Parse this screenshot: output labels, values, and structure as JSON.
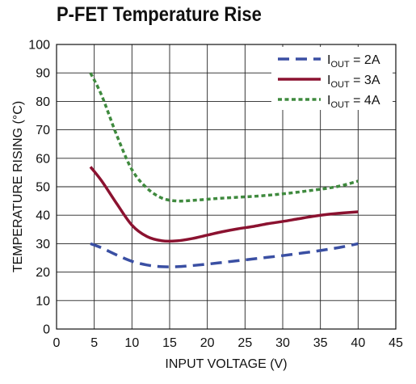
{
  "chart_data": {
    "type": "line",
    "title": "P-FET Temperature Rise",
    "xlabel": "INPUT VOLTAGE (V)",
    "ylabel": "TEMPERATURE RISING (°C)",
    "xlim": [
      0,
      45
    ],
    "ylim": [
      0,
      100
    ],
    "xticks": [
      "0",
      "5",
      "10",
      "15",
      "20",
      "25",
      "30",
      "35",
      "40",
      "45"
    ],
    "yticks": [
      "0",
      "10",
      "20",
      "30",
      "40",
      "50",
      "60",
      "70",
      "80",
      "90",
      "100"
    ],
    "grid": true,
    "legend_position": "top-right",
    "series": [
      {
        "name": "IOUT = 2A",
        "label_main": "I",
        "label_sub": "OUT",
        "label_tail": " = 2A",
        "color": "#3a4fa3",
        "dash": "long-dash",
        "x": [
          4.5,
          6,
          8,
          10,
          12,
          14,
          16,
          18,
          20,
          22,
          24,
          26,
          28,
          30,
          32,
          34,
          36,
          38,
          40
        ],
        "y": [
          30,
          28.5,
          26,
          23.8,
          22.5,
          21.9,
          21.9,
          22.3,
          22.8,
          23.4,
          24,
          24.6,
          25.2,
          25.8,
          26.5,
          27.2,
          28,
          28.9,
          30
        ]
      },
      {
        "name": "IOUT = 3A",
        "label_main": "I",
        "label_sub": "OUT",
        "label_tail": " = 3A",
        "color": "#8b1230",
        "dash": "solid",
        "x": [
          4.5,
          6,
          8,
          10,
          12,
          14,
          16,
          18,
          20,
          22,
          24,
          26,
          28,
          30,
          32,
          34,
          36,
          38,
          40
        ],
        "y": [
          57,
          52,
          44,
          36.5,
          32.5,
          31,
          31,
          31.8,
          33,
          34.2,
          35.2,
          36,
          37,
          37.8,
          38.7,
          39.6,
          40.3,
          40.8,
          41.2
        ]
      },
      {
        "name": "IOUT = 4A",
        "label_main": "I",
        "label_sub": "OUT",
        "label_tail": " = 4A",
        "color": "#3f8a3e",
        "dash": "short-dash",
        "x": [
          4.5,
          6,
          8,
          10,
          12,
          14,
          16,
          18,
          20,
          22,
          24,
          26,
          28,
          30,
          32,
          34,
          36,
          38,
          40
        ],
        "y": [
          90,
          82,
          68,
          56,
          49.5,
          46,
          45,
          45.2,
          45.6,
          46,
          46.3,
          46.6,
          47,
          47.5,
          48.1,
          48.8,
          49.5,
          50.5,
          52
        ]
      }
    ]
  }
}
